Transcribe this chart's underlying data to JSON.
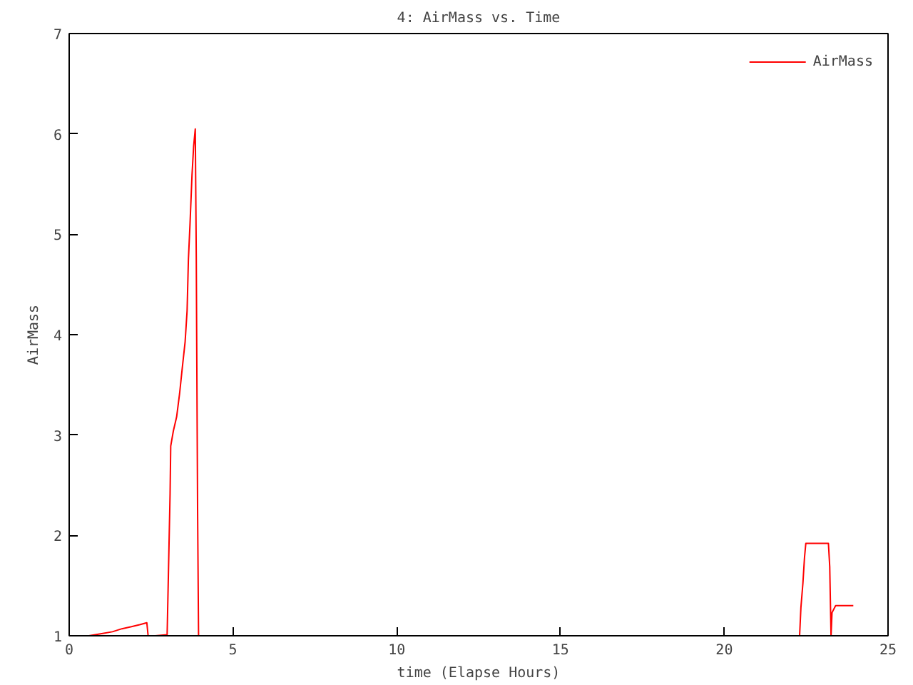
{
  "chart_data": {
    "type": "line",
    "title": "4: AirMass vs. Time",
    "xlabel": "time (Elapse Hours)",
    "ylabel": "AirMass",
    "xlim": [
      0,
      25
    ],
    "ylim": [
      1,
      7
    ],
    "xticks": [
      0,
      5,
      10,
      15,
      20,
      25
    ],
    "yticks": [
      1,
      2,
      3,
      4,
      5,
      6,
      7
    ],
    "grid": false,
    "legend": "top right",
    "marker": "none",
    "line_style": "solid",
    "series": [
      {
        "name": "AirMass",
        "color": "#ff0000",
        "x": [
          0.6,
          0.96,
          1.32,
          1.61,
          1.9,
          2.15,
          2.37,
          2.41,
          2.63,
          2.99,
          3.02,
          3.08,
          3.1,
          3.18,
          3.28,
          3.37,
          3.45,
          3.54,
          3.6,
          3.64,
          3.69,
          3.75,
          3.8,
          3.85,
          3.88,
          3.92,
          3.95,
          4.08,
          null,
          22.3,
          22.34,
          22.4,
          22.45,
          22.49,
          23.18,
          23.22,
          23.26,
          23.29,
          23.4,
          23.94
        ],
        "values": [
          1.0,
          1.02,
          1.04,
          1.07,
          1.09,
          1.11,
          1.13,
          1.0,
          1.0,
          1.01,
          1.47,
          2.41,
          2.89,
          3.04,
          3.18,
          3.41,
          3.66,
          3.93,
          4.24,
          4.75,
          5.11,
          5.59,
          5.88,
          6.05,
          4.77,
          2.27,
          1.0,
          1.0,
          null,
          1.0,
          1.28,
          1.52,
          1.78,
          1.92,
          1.92,
          1.69,
          1.0,
          1.23,
          1.3,
          1.3
        ]
      }
    ]
  }
}
